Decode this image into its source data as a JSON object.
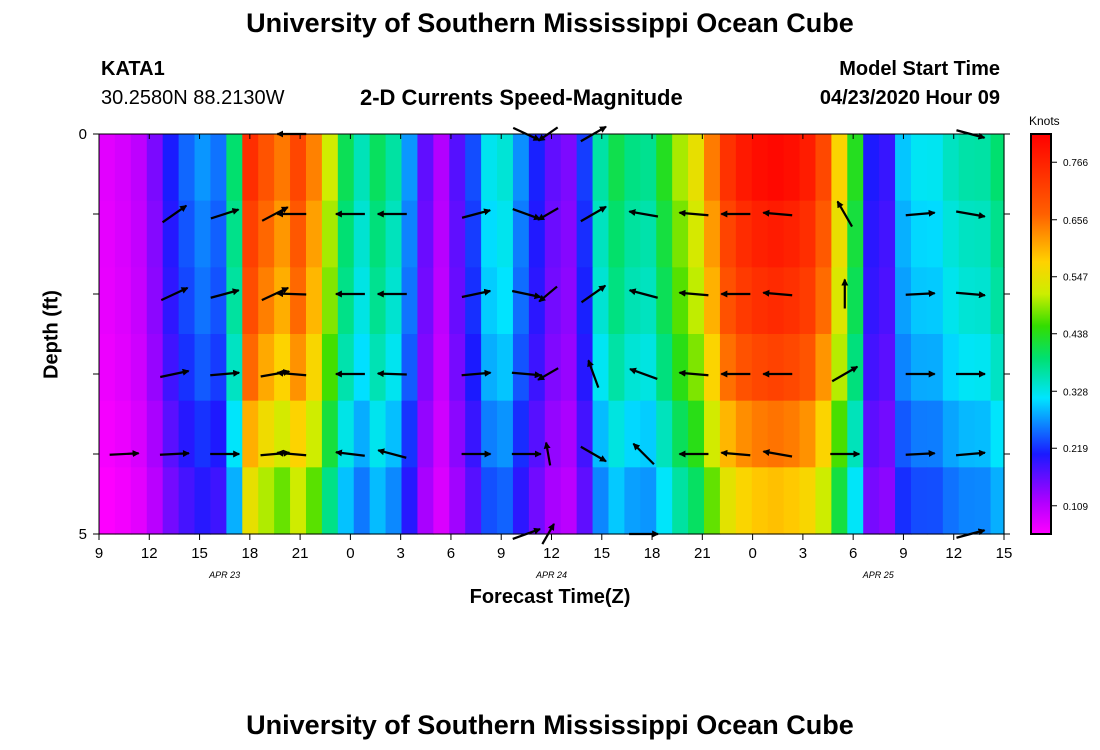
{
  "page": {
    "title_top": "University of Southern Mississippi Ocean Cube",
    "title_bottom": "University of Southern Mississippi Ocean Cube",
    "station": "KATA1",
    "coords": "30.2580N 88.2130W",
    "subtitle": "2-D Currents Speed-Magnitude",
    "model_start_label": "Model Start Time",
    "model_start_value": "04/23/2020 Hour 09"
  },
  "chart_data": {
    "type": "heatmap",
    "title": "2-D Currents Speed-Magnitude",
    "xlabel": "Forecast Time(Z)",
    "ylabel": "Depth (ft)",
    "x_ticks": [
      "9",
      "12",
      "15",
      "18",
      "21",
      "0",
      "3",
      "6",
      "9",
      "12",
      "15",
      "18",
      "21",
      "0",
      "3",
      "6",
      "9",
      "12",
      "15"
    ],
    "x_range_hours": [
      0,
      54
    ],
    "y_ticks": [
      "0",
      "5"
    ],
    "y_range_ft": [
      0,
      5
    ],
    "date_labels": [
      {
        "text": "APR 23",
        "hour": 7.5
      },
      {
        "text": "APR 24",
        "hour": 27
      },
      {
        "text": "APR 25",
        "hour": 46.5
      }
    ],
    "colorbar": {
      "unit": "Knots",
      "min": 0.055,
      "max": 0.82,
      "ticks": [
        "0.109",
        "0.219",
        "0.328",
        "0.438",
        "0.547",
        "0.656",
        "0.766"
      ],
      "tick_values": [
        0.109,
        0.219,
        0.328,
        0.438,
        0.547,
        0.656,
        0.766
      ]
    },
    "cell_hours": 0.95,
    "speed_profile": {
      "hours": [
        0,
        1,
        2,
        3,
        4,
        5,
        6,
        7,
        8,
        9,
        10,
        11,
        12,
        13,
        14,
        15,
        16,
        17,
        18,
        19,
        20,
        21,
        22,
        23,
        24,
        25,
        26,
        27,
        28,
        29,
        30,
        31,
        32,
        33,
        34,
        35,
        36,
        37,
        38,
        39,
        40,
        41,
        42,
        43,
        44,
        45,
        46,
        47,
        48,
        49,
        50,
        51,
        52,
        53,
        54
      ],
      "speed": [
        0.07,
        0.08,
        0.09,
        0.12,
        0.19,
        0.23,
        0.27,
        0.23,
        0.35,
        0.72,
        0.66,
        0.62,
        0.69,
        0.6,
        0.47,
        0.36,
        0.33,
        0.42,
        0.3,
        0.23,
        0.08,
        0.15,
        0.19,
        0.3,
        0.34,
        0.27,
        0.21,
        0.16,
        0.14,
        0.22,
        0.36,
        0.4,
        0.36,
        0.36,
        0.44,
        0.5,
        0.54,
        0.68,
        0.74,
        0.76,
        0.78,
        0.77,
        0.76,
        0.71,
        0.57,
        0.45,
        0.2,
        0.18,
        0.29,
        0.31,
        0.31,
        0.34,
        0.35,
        0.35,
        0.39
      ]
    },
    "depth_factor": [
      1.04,
      1.0,
      0.97,
      0.92,
      0.84,
      0.76
    ],
    "current_vectors": [
      {
        "hour": 1.5,
        "depth_ft": 4,
        "dir_deg": 3,
        "len": 1
      },
      {
        "hour": 4.5,
        "depth_ft": 1,
        "dir_deg": 35,
        "len": 1
      },
      {
        "hour": 4.5,
        "depth_ft": 2,
        "dir_deg": 25,
        "len": 1
      },
      {
        "hour": 4.5,
        "depth_ft": 3,
        "dir_deg": 12,
        "len": 1
      },
      {
        "hour": 4.5,
        "depth_ft": 4,
        "dir_deg": 3,
        "len": 1
      },
      {
        "hour": 7.5,
        "depth_ft": 1,
        "dir_deg": 18,
        "len": 1
      },
      {
        "hour": 7.5,
        "depth_ft": 2,
        "dir_deg": 15,
        "len": 1
      },
      {
        "hour": 7.5,
        "depth_ft": 3,
        "dir_deg": 5,
        "len": 1
      },
      {
        "hour": 7.5,
        "depth_ft": 4,
        "dir_deg": 0,
        "len": 1
      },
      {
        "hour": 10.5,
        "depth_ft": 1,
        "dir_deg": 28,
        "len": 1
      },
      {
        "hour": 10.5,
        "depth_ft": 2,
        "dir_deg": 25,
        "len": 1
      },
      {
        "hour": 10.5,
        "depth_ft": 3,
        "dir_deg": 10,
        "len": 1
      },
      {
        "hour": 10.5,
        "depth_ft": 4,
        "dir_deg": 5,
        "len": 1
      },
      {
        "hour": 11.5,
        "depth_ft": 0,
        "dir_deg": 180,
        "len": 1
      },
      {
        "hour": 11.5,
        "depth_ft": 1,
        "dir_deg": 180,
        "len": 1
      },
      {
        "hour": 11.5,
        "depth_ft": 2,
        "dir_deg": 178,
        "len": 1
      },
      {
        "hour": 11.5,
        "depth_ft": 3,
        "dir_deg": 175,
        "len": 1
      },
      {
        "hour": 11.5,
        "depth_ft": 4,
        "dir_deg": 175,
        "len": 1
      },
      {
        "hour": 15.0,
        "depth_ft": 1,
        "dir_deg": 180,
        "len": 1
      },
      {
        "hour": 15.0,
        "depth_ft": 2,
        "dir_deg": 180,
        "len": 1
      },
      {
        "hour": 15.0,
        "depth_ft": 3,
        "dir_deg": 180,
        "len": 1
      },
      {
        "hour": 15.0,
        "depth_ft": 4,
        "dir_deg": 173,
        "len": 1
      },
      {
        "hour": 17.5,
        "depth_ft": 1,
        "dir_deg": 180,
        "len": 1
      },
      {
        "hour": 17.5,
        "depth_ft": 2,
        "dir_deg": 180,
        "len": 1
      },
      {
        "hour": 17.5,
        "depth_ft": 3,
        "dir_deg": 178,
        "len": 1
      },
      {
        "hour": 17.5,
        "depth_ft": 4,
        "dir_deg": 165,
        "len": 1
      },
      {
        "hour": 22.5,
        "depth_ft": 1,
        "dir_deg": 15,
        "len": 1
      },
      {
        "hour": 22.5,
        "depth_ft": 2,
        "dir_deg": 12,
        "len": 1
      },
      {
        "hour": 22.5,
        "depth_ft": 3,
        "dir_deg": 5,
        "len": 1
      },
      {
        "hour": 22.5,
        "depth_ft": 4,
        "dir_deg": 0,
        "len": 1
      },
      {
        "hour": 25.5,
        "depth_ft": 0,
        "dir_deg": -25,
        "len": 1
      },
      {
        "hour": 25.5,
        "depth_ft": 1,
        "dir_deg": -20,
        "len": 1
      },
      {
        "hour": 25.5,
        "depth_ft": 2,
        "dir_deg": -12,
        "len": 1
      },
      {
        "hour": 25.5,
        "depth_ft": 3,
        "dir_deg": -5,
        "len": 1
      },
      {
        "hour": 25.5,
        "depth_ft": 4,
        "dir_deg": 0,
        "len": 1
      },
      {
        "hour": 25.5,
        "depth_ft": 5,
        "dir_deg": 20,
        "len": 1
      },
      {
        "hour": 26.8,
        "depth_ft": 0,
        "dir_deg": 215,
        "len": 0.8
      },
      {
        "hour": 26.8,
        "depth_ft": 1,
        "dir_deg": 210,
        "len": 0.8
      },
      {
        "hour": 26.8,
        "depth_ft": 2,
        "dir_deg": 220,
        "len": 0.8
      },
      {
        "hour": 26.8,
        "depth_ft": 3,
        "dir_deg": 210,
        "len": 0.8
      },
      {
        "hour": 26.8,
        "depth_ft": 4,
        "dir_deg": 100,
        "len": 0.8
      },
      {
        "hour": 26.8,
        "depth_ft": 5,
        "dir_deg": 60,
        "len": 0.8
      },
      {
        "hour": 29.5,
        "depth_ft": 0,
        "dir_deg": 30,
        "len": 1
      },
      {
        "hour": 29.5,
        "depth_ft": 1,
        "dir_deg": 30,
        "len": 1
      },
      {
        "hour": 29.5,
        "depth_ft": 2,
        "dir_deg": 35,
        "len": 1
      },
      {
        "hour": 29.5,
        "depth_ft": 3,
        "dir_deg": 110,
        "len": 1
      },
      {
        "hour": 29.5,
        "depth_ft": 4,
        "dir_deg": -30,
        "len": 1
      },
      {
        "hour": 32.5,
        "depth_ft": 1,
        "dir_deg": 170,
        "len": 1
      },
      {
        "hour": 32.5,
        "depth_ft": 2,
        "dir_deg": 165,
        "len": 1
      },
      {
        "hour": 32.5,
        "depth_ft": 3,
        "dir_deg": 160,
        "len": 1
      },
      {
        "hour": 32.5,
        "depth_ft": 4,
        "dir_deg": 135,
        "len": 1
      },
      {
        "hour": 32.5,
        "depth_ft": 5,
        "dir_deg": 0,
        "len": 1
      },
      {
        "hour": 35.5,
        "depth_ft": 1,
        "dir_deg": 175,
        "len": 1
      },
      {
        "hour": 35.5,
        "depth_ft": 2,
        "dir_deg": 175,
        "len": 1
      },
      {
        "hour": 35.5,
        "depth_ft": 3,
        "dir_deg": 175,
        "len": 1
      },
      {
        "hour": 35.5,
        "depth_ft": 4,
        "dir_deg": 180,
        "len": 1
      },
      {
        "hour": 38.0,
        "depth_ft": 1,
        "dir_deg": 180,
        "len": 1
      },
      {
        "hour": 38.0,
        "depth_ft": 2,
        "dir_deg": 180,
        "len": 1
      },
      {
        "hour": 38.0,
        "depth_ft": 3,
        "dir_deg": 180,
        "len": 1
      },
      {
        "hour": 38.0,
        "depth_ft": 4,
        "dir_deg": 175,
        "len": 1
      },
      {
        "hour": 40.5,
        "depth_ft": 1,
        "dir_deg": 175,
        "len": 1
      },
      {
        "hour": 40.5,
        "depth_ft": 2,
        "dir_deg": 175,
        "len": 1
      },
      {
        "hour": 40.5,
        "depth_ft": 3,
        "dir_deg": 180,
        "len": 1
      },
      {
        "hour": 40.5,
        "depth_ft": 4,
        "dir_deg": 170,
        "len": 1
      },
      {
        "hour": 44.5,
        "depth_ft": 1,
        "dir_deg": 120,
        "len": 1
      },
      {
        "hour": 44.5,
        "depth_ft": 2,
        "dir_deg": 90,
        "len": 1
      },
      {
        "hour": 44.5,
        "depth_ft": 3,
        "dir_deg": 30,
        "len": 1
      },
      {
        "hour": 44.5,
        "depth_ft": 4,
        "dir_deg": 0,
        "len": 1
      },
      {
        "hour": 49.0,
        "depth_ft": 1,
        "dir_deg": 5,
        "len": 1
      },
      {
        "hour": 49.0,
        "depth_ft": 2,
        "dir_deg": 3,
        "len": 1
      },
      {
        "hour": 49.0,
        "depth_ft": 3,
        "dir_deg": 0,
        "len": 1
      },
      {
        "hour": 49.0,
        "depth_ft": 4,
        "dir_deg": 3,
        "len": 1
      },
      {
        "hour": 52.0,
        "depth_ft": 0,
        "dir_deg": -15,
        "len": 1
      },
      {
        "hour": 52.0,
        "depth_ft": 1,
        "dir_deg": -10,
        "len": 1
      },
      {
        "hour": 52.0,
        "depth_ft": 2,
        "dir_deg": -5,
        "len": 1
      },
      {
        "hour": 52.0,
        "depth_ft": 3,
        "dir_deg": 0,
        "len": 1
      },
      {
        "hour": 52.0,
        "depth_ft": 4,
        "dir_deg": 5,
        "len": 1
      },
      {
        "hour": 52.0,
        "depth_ft": 5,
        "dir_deg": 15,
        "len": 1
      }
    ]
  }
}
